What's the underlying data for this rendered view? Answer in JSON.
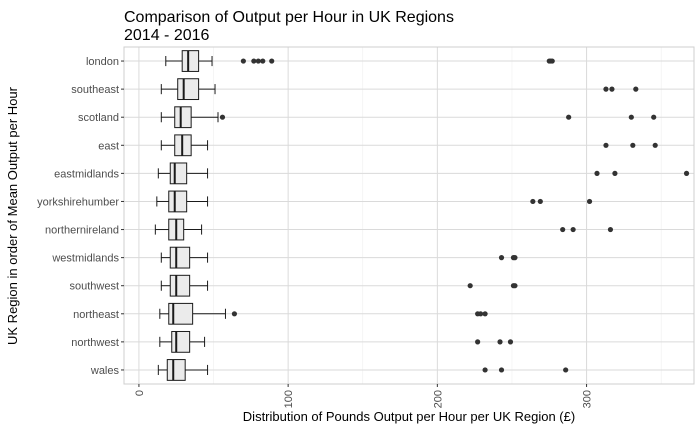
{
  "chart_data": {
    "type": "boxplot",
    "title": [
      "Comparison of Output per Hour in UK Regions",
      "2014 - 2016"
    ],
    "xlabel": "Distribution of Pounds Output per Hour per UK Region (£)",
    "ylabel": "UK Region in order of Mean Output per Hour",
    "xlim": [
      -10,
      372
    ],
    "x_ticks": [
      0,
      100,
      200,
      300
    ],
    "grid": true,
    "colors": {
      "box_fill": "#ebebeb",
      "outline": "#1a1a1a",
      "grid_major": "#dadada",
      "grid_minor": "#efefef",
      "outlier": "#333333"
    },
    "categories": [
      "london",
      "southeast",
      "scotland",
      "east",
      "eastmidlands",
      "yorkshirehumber",
      "northernireland",
      "westmidlands",
      "southwest",
      "northeast",
      "northwest",
      "wales"
    ],
    "boxes": [
      {
        "region": "london",
        "whisker_low": 18,
        "q1": 29,
        "median": 33,
        "q3": 40,
        "whisker_high": 49,
        "outliers": [
          70,
          77,
          80,
          83,
          89,
          275,
          276,
          277
        ]
      },
      {
        "region": "southeast",
        "whisker_low": 15,
        "q1": 26,
        "median": 30,
        "q3": 40,
        "whisker_high": 51,
        "outliers": [
          313,
          317,
          333
        ]
      },
      {
        "region": "scotland",
        "whisker_low": 15,
        "q1": 24,
        "median": 28,
        "q3": 35,
        "whisker_high": 53,
        "outliers": [
          56,
          288,
          330,
          345
        ]
      },
      {
        "region": "east",
        "whisker_low": 15,
        "q1": 24,
        "median": 29,
        "q3": 35,
        "whisker_high": 46,
        "outliers": [
          313,
          331,
          346
        ]
      },
      {
        "region": "eastmidlands",
        "whisker_low": 13,
        "q1": 21,
        "median": 24,
        "q3": 32,
        "whisker_high": 46,
        "outliers": [
          307,
          319,
          367
        ]
      },
      {
        "region": "yorkshirehumber",
        "whisker_low": 12,
        "q1": 20,
        "median": 24,
        "q3": 32,
        "whisker_high": 46,
        "outliers": [
          264,
          269,
          302
        ]
      },
      {
        "region": "northernireland",
        "whisker_low": 11,
        "q1": 20,
        "median": 25,
        "q3": 30,
        "whisker_high": 42,
        "outliers": [
          284,
          291,
          316
        ]
      },
      {
        "region": "westmidlands",
        "whisker_low": 15,
        "q1": 21,
        "median": 25,
        "q3": 34,
        "whisker_high": 46,
        "outliers": [
          243,
          251,
          252
        ]
      },
      {
        "region": "southwest",
        "whisker_low": 15,
        "q1": 21,
        "median": 25,
        "q3": 34,
        "whisker_high": 46,
        "outliers": [
          222,
          251,
          252
        ]
      },
      {
        "region": "northeast",
        "whisker_low": 14,
        "q1": 20,
        "median": 23,
        "q3": 36,
        "whisker_high": 58,
        "outliers": [
          64,
          227,
          229,
          232
        ]
      },
      {
        "region": "northwest",
        "whisker_low": 14,
        "q1": 22,
        "median": 25,
        "q3": 34,
        "whisker_high": 44,
        "outliers": [
          227,
          242,
          249
        ]
      },
      {
        "region": "wales",
        "whisker_low": 13,
        "q1": 19,
        "median": 23,
        "q3": 31,
        "whisker_high": 46,
        "outliers": [
          232,
          243,
          286
        ]
      }
    ]
  }
}
